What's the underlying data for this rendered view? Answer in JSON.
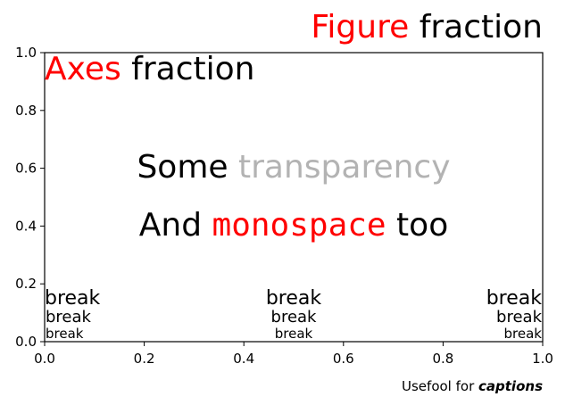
{
  "chart_data": {
    "type": "text",
    "xlim": [
      0,
      1
    ],
    "ylim": [
      0,
      1
    ],
    "grid": false,
    "x_ticks": [
      "0.0",
      "0.2",
      "0.4",
      "0.6",
      "0.8",
      "1.0"
    ],
    "y_ticks": [
      "0.0",
      "0.2",
      "0.4",
      "0.6",
      "0.8",
      "1.0"
    ],
    "title": {
      "part1": "Figure",
      "part2": " fraction",
      "part1_color": "#ff0000",
      "part2_color": "#000000"
    },
    "axes_label": {
      "part1": "Axes",
      "part2": " fraction",
      "part1_color": "#ff0000",
      "part2_color": "#000000"
    },
    "line1": {
      "part1": "Some ",
      "part2": "transparency",
      "part2_color": "#b3b3b3"
    },
    "line2": {
      "part1": "And ",
      "part2": "monospace",
      "part3": " too",
      "part2_color": "#ff0000"
    },
    "break_label": "break",
    "caption": {
      "part1": "Usefool for ",
      "part2": "captions"
    }
  }
}
